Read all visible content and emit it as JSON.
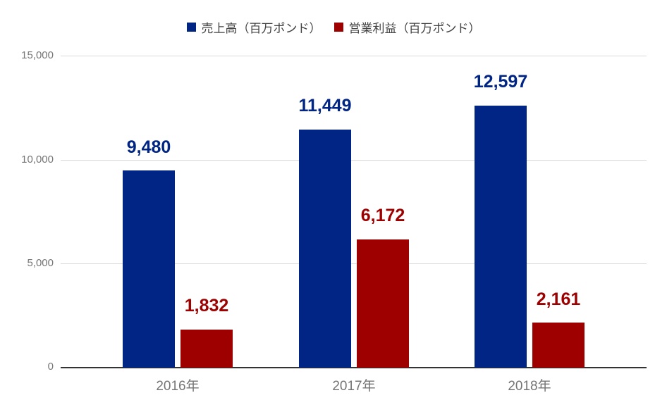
{
  "chart_data": {
    "type": "bar",
    "title": "",
    "categories": [
      "2016年",
      "2017年",
      "2018年"
    ],
    "series": [
      {
        "name": "売上高（百万ポンド）",
        "color": "#002584",
        "values": [
          9480,
          11449,
          12597
        ],
        "value_labels": [
          "9,480",
          "11,449",
          "12,597"
        ]
      },
      {
        "name": "営業利益（百万ポンド）",
        "color": "#9e0000",
        "values": [
          1832,
          6172,
          2161
        ],
        "value_labels": [
          "1,832",
          "6,172",
          "2,161"
        ]
      }
    ],
    "ylim": [
      0,
      15000
    ],
    "yticks": [
      {
        "value": 15000,
        "label": "15,000"
      },
      {
        "value": 10000,
        "label": "10,000"
      },
      {
        "value": 5000,
        "label": "5,000"
      },
      {
        "value": 0,
        "label": "0"
      }
    ],
    "grid": true,
    "legend_position": "top",
    "style": {
      "gridline_color": "#d9d9d9",
      "axis_line_color": "#333333",
      "tick_label_color": "#757575",
      "legend_text_color": "#424242",
      "background": "#ffffff"
    }
  }
}
